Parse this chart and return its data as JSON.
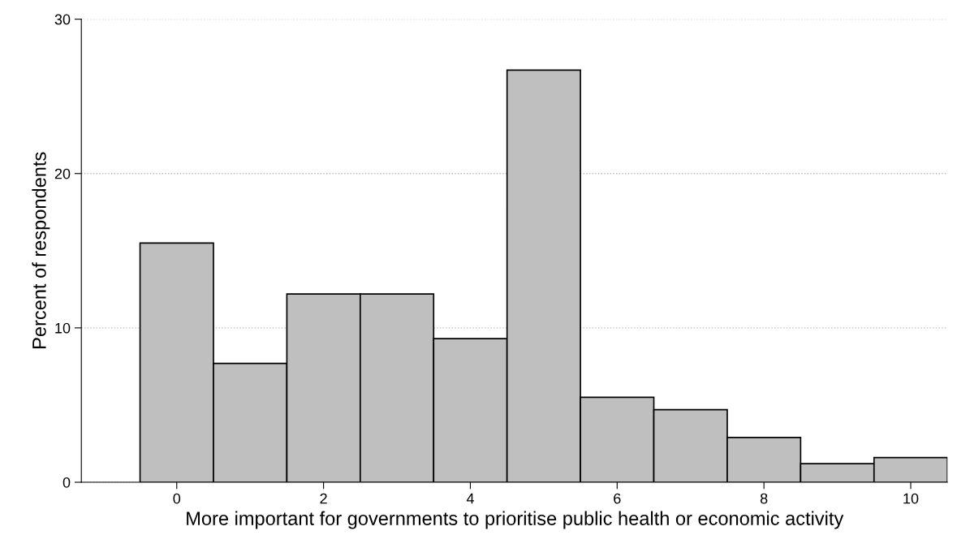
{
  "chart_data": {
    "type": "histogram",
    "xlabel": "More important for governments to prioritise public health or economic activity",
    "ylabel": "Percent of respondents",
    "bins": [
      -0.5,
      0.5,
      1.5,
      2.5,
      3.5,
      4.5,
      5.5,
      6.5,
      7.5,
      8.5,
      9.5,
      10.5
    ],
    "values": [
      15.5,
      7.7,
      12.2,
      12.2,
      9.3,
      26.7,
      5.5,
      4.7,
      2.9,
      1.2,
      1.6
    ],
    "color": "#bfbfbf",
    "xlim": [
      -1.3,
      10.5
    ],
    "xticks": [
      0,
      2,
      4,
      6,
      8,
      10
    ],
    "ylim": [
      0,
      30
    ],
    "yticks": [
      0,
      10,
      20,
      30
    ],
    "grid": "y"
  }
}
